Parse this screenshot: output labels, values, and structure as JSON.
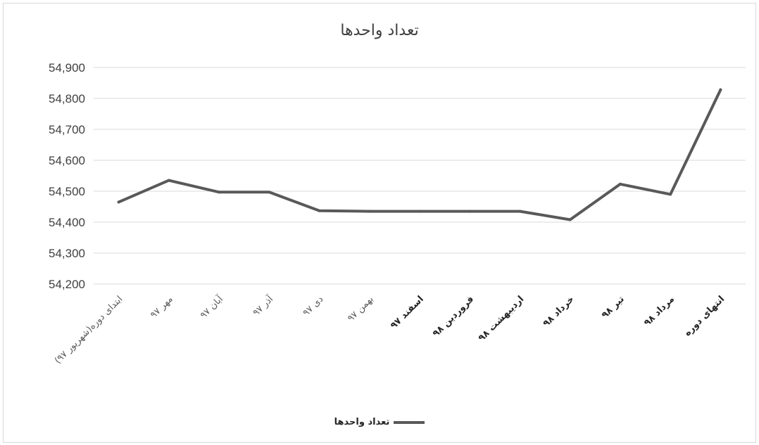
{
  "chart_data": {
    "type": "line",
    "title": "تعداد واحدها",
    "xlabel": "",
    "ylabel": "",
    "categories": [
      "ابتدای دوره(شهریور ۹۷)",
      "مهر ۹۷",
      "آبان ۹۷",
      "آذر ۹۷",
      "دی ۹۷",
      "بهمن ۹۷",
      "اسفند ۹۷",
      "فروردین ۹۸",
      "اردیبهشت ۹۸",
      "خرداد ۹۸",
      "تیر ۹۸",
      "مرداد ۹۸",
      "انتهای دوره"
    ],
    "series": [
      {
        "name": "تعداد واحدها",
        "values": [
          54465,
          54535,
          54497,
          54497,
          54437,
          54435,
          54435,
          54435,
          54435,
          54408,
          54523,
          54490,
          54828
        ]
      }
    ],
    "ylim": [
      54200,
      54900
    ],
    "yticks": [
      54200,
      54300,
      54400,
      54500,
      54600,
      54700,
      54800,
      54900
    ],
    "ytick_labels": [
      "54,200",
      "54,300",
      "54,400",
      "54,500",
      "54,600",
      "54,700",
      "54,800",
      "54,900"
    ],
    "bold_categories": [
      6,
      7,
      8,
      9,
      10,
      11,
      12
    ],
    "grid": true,
    "legend_position": "bottom",
    "line_color": "#595959",
    "grid_color": "#d9d9d9"
  }
}
